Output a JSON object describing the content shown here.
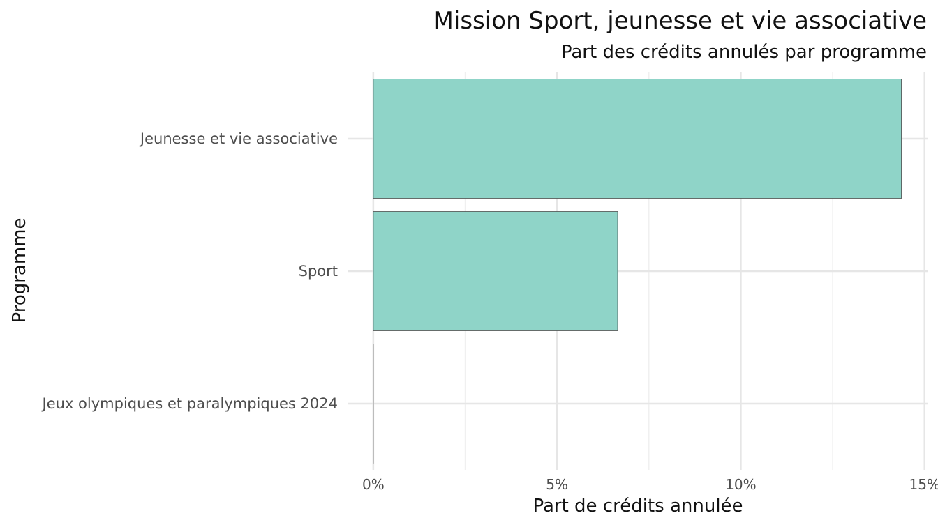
{
  "chart_data": {
    "type": "bar",
    "orientation": "horizontal",
    "title": "Mission Sport, jeunesse et vie associative",
    "subtitle": "Part des crédits annulés par programme",
    "xlabel": "Part de crédits annulée",
    "ylabel": "Programme",
    "categories": [
      "Jeunesse et vie associative",
      "Sport",
      "Jeux olympiques et paralympiques 2024"
    ],
    "values": [
      14.37,
      6.65,
      0.0
    ],
    "xlim": [
      -0.7,
      15.1
    ],
    "x_ticks": [
      0,
      5,
      10,
      15
    ],
    "x_tick_labels": [
      "0%",
      "5%",
      "10%",
      "15%"
    ],
    "grid": true,
    "legend": "none",
    "colors": {
      "bar_fill": "#8fd4c8",
      "bar_stroke": "#4d4d4d",
      "grid_major": "#e6e6e6",
      "grid_minor": "#f0f0f0"
    }
  }
}
